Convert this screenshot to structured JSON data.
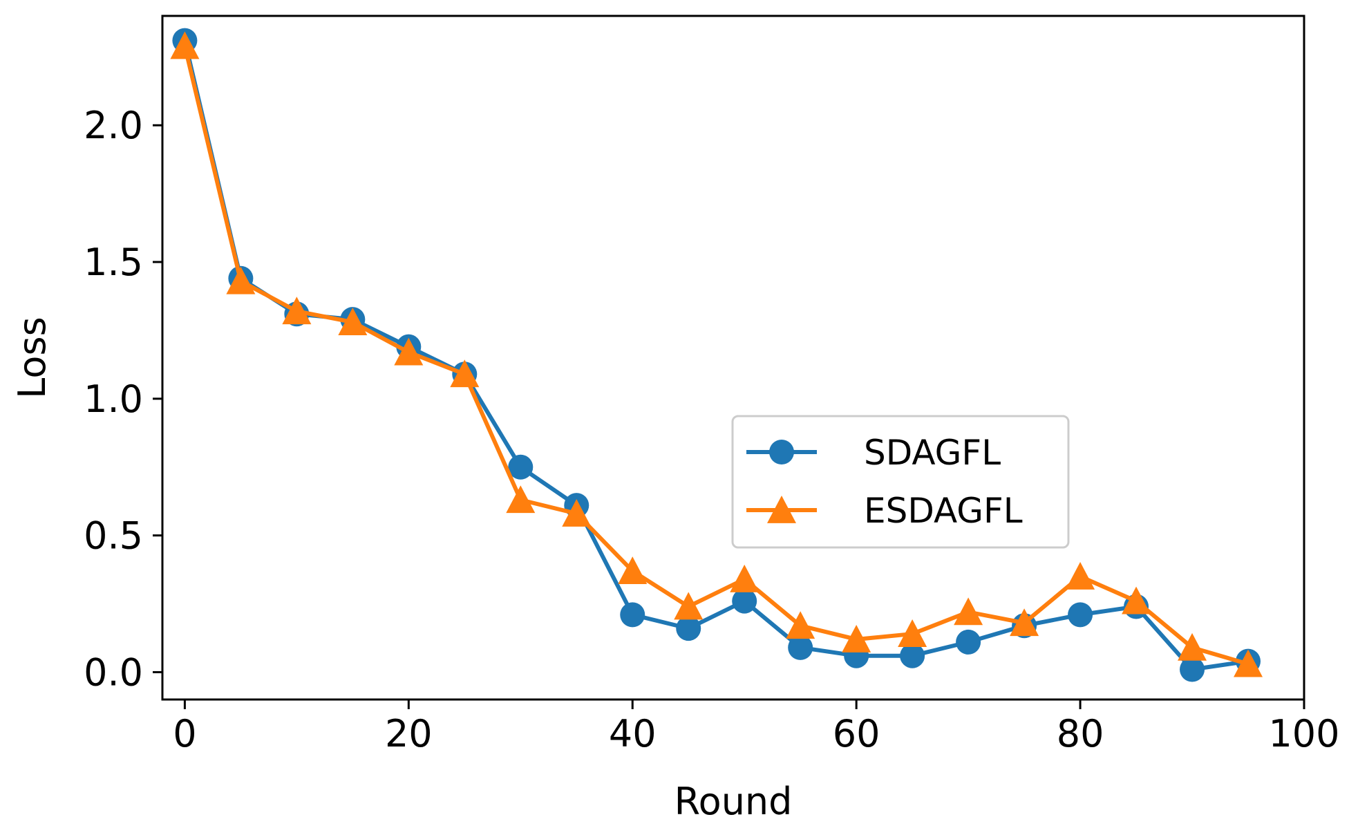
{
  "chart_data": {
    "type": "line",
    "title": "",
    "xlabel": "Round",
    "ylabel": "Loss",
    "xlim": [
      -2,
      100
    ],
    "ylim": [
      -0.1,
      2.4
    ],
    "xticks": [
      0,
      20,
      40,
      60,
      80,
      100
    ],
    "yticks": [
      0.0,
      0.5,
      1.0,
      1.5,
      2.0
    ],
    "xtick_labels": [
      "0",
      "20",
      "40",
      "60",
      "80",
      "100"
    ],
    "ytick_labels": [
      "0.0",
      "0.5",
      "1.0",
      "1.5",
      "2.0"
    ],
    "grid": false,
    "legend_position": "center-right",
    "x": [
      0,
      5,
      10,
      15,
      20,
      25,
      30,
      35,
      40,
      45,
      50,
      55,
      60,
      65,
      70,
      75,
      80,
      85,
      90,
      95
    ],
    "series": [
      {
        "name": "SDAGFL",
        "marker": "circle",
        "color": "#1f77b4",
        "values": [
          2.31,
          1.44,
          1.31,
          1.29,
          1.19,
          1.09,
          0.75,
          0.61,
          0.21,
          0.16,
          0.26,
          0.09,
          0.06,
          0.06,
          0.11,
          0.17,
          0.21,
          0.24,
          0.01,
          0.04
        ]
      },
      {
        "name": "ESDAGFL",
        "marker": "triangle",
        "color": "#ff7f0e",
        "values": [
          2.29,
          1.43,
          1.32,
          1.28,
          1.17,
          1.09,
          0.63,
          0.58,
          0.37,
          0.24,
          0.34,
          0.17,
          0.12,
          0.14,
          0.22,
          0.18,
          0.35,
          0.26,
          0.09,
          0.03
        ]
      }
    ]
  }
}
